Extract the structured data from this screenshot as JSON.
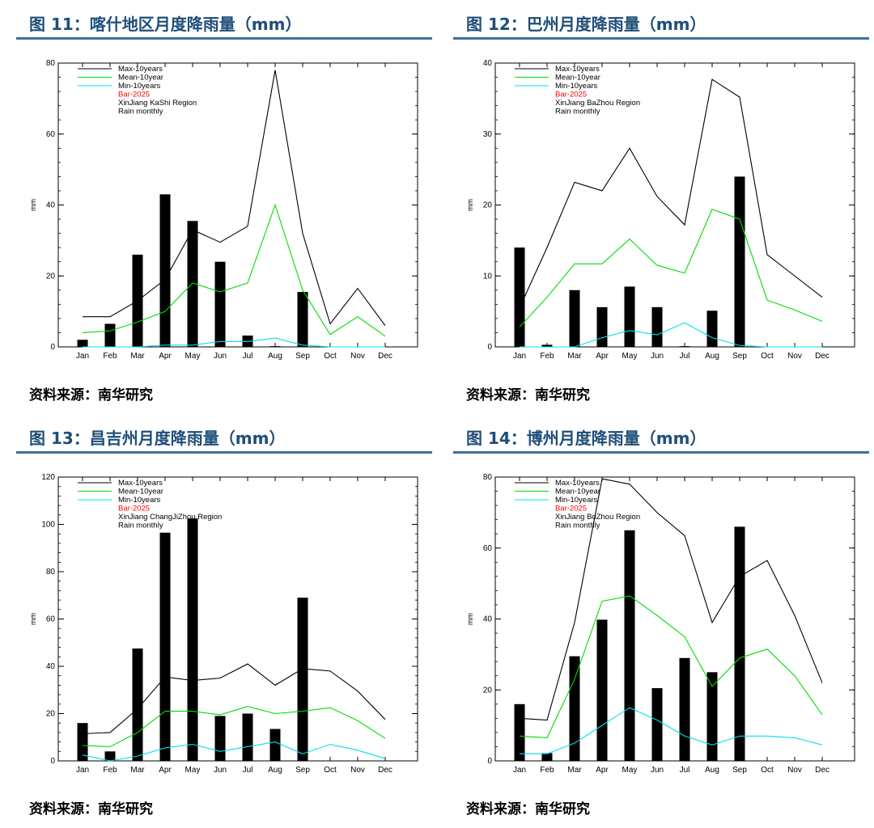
{
  "source_label": "资料来源：南华研究",
  "colors": {
    "title": "#1f4e79",
    "rule": "#3f6f9a",
    "max": "#000000",
    "mean": "#00dd00",
    "min": "#00e0f0",
    "bar": "#000000",
    "bar_legend": "#ff0000"
  },
  "chart_data": [
    {
      "type": "bar",
      "title": "图 11：喀什地区月度降雨量（mm）",
      "ylabel": "mm",
      "ylim": [
        0,
        80
      ],
      "yticks": [
        0,
        20,
        40,
        60,
        80
      ],
      "categories": [
        "Jan",
        "Feb",
        "Mar",
        "Apr",
        "May",
        "Jun",
        "Jul",
        "Aug",
        "Sep",
        "Oct",
        "Nov",
        "Dec"
      ],
      "legend": [
        "Max-10years",
        "Mean-10year",
        "Min-10years",
        "Bar-2025",
        "XinJiang KaShi Region",
        "Rain monthly"
      ],
      "series": [
        {
          "name": "Max-10years",
          "kind": "line",
          "values": [
            8.5,
            8.5,
            13,
            19,
            33,
            29.5,
            34,
            78,
            32,
            6.5,
            16.5,
            6
          ]
        },
        {
          "name": "Mean-10year",
          "kind": "line",
          "values": [
            4,
            4.5,
            7,
            10,
            18,
            15.5,
            18,
            40,
            16,
            3.5,
            8.5,
            3
          ]
        },
        {
          "name": "Min-10years",
          "kind": "line",
          "values": [
            0,
            0,
            0,
            0.5,
            0.5,
            1.5,
            1.5,
            2.5,
            0.5,
            0,
            0,
            0
          ]
        },
        {
          "name": "Bar-2025",
          "kind": "bar",
          "values": [
            2,
            6.5,
            26,
            43,
            35.5,
            24,
            3.2,
            0.2,
            15.5,
            0,
            0,
            0
          ]
        }
      ]
    },
    {
      "type": "bar",
      "title": "图 12：巴州月度降雨量（mm）",
      "ylabel": "mm",
      "ylim": [
        0,
        40
      ],
      "yticks": [
        0,
        10,
        20,
        30,
        40
      ],
      "categories": [
        "Jan",
        "Feb",
        "Mar",
        "Apr",
        "May",
        "Jun",
        "Jul",
        "Aug",
        "Sep",
        "Oct",
        "Nov",
        "Dec"
      ],
      "legend": [
        "Max-10years",
        "Mean-10year",
        "Min-10years",
        "Bar-2025",
        "XinJiang BaZhou Region",
        "Rain monthly"
      ],
      "series": [
        {
          "name": "Max-10years",
          "kind": "line",
          "values": [
            5.5,
            14,
            23.2,
            22,
            28,
            21.2,
            17.2,
            37.7,
            35.2,
            13,
            10,
            7
          ]
        },
        {
          "name": "Mean-10year",
          "kind": "line",
          "values": [
            2.8,
            7,
            11.7,
            11.7,
            15.2,
            11.5,
            10.4,
            19.4,
            18,
            6.6,
            5.2,
            3.6
          ]
        },
        {
          "name": "Min-10years",
          "kind": "line",
          "values": [
            0,
            0,
            0,
            1.3,
            2.3,
            1.7,
            3.4,
            1.3,
            0.2,
            0,
            0,
            0
          ]
        },
        {
          "name": "Bar-2025",
          "kind": "bar",
          "values": [
            14,
            0.3,
            8,
            5.6,
            8.5,
            5.6,
            0.1,
            5.1,
            24,
            0,
            0,
            0
          ]
        }
      ]
    },
    {
      "type": "bar",
      "title": "图 13：昌吉州月度降雨量（mm）",
      "ylabel": "mm",
      "ylim": [
        0,
        120
      ],
      "yticks": [
        0,
        20,
        40,
        60,
        80,
        100,
        120
      ],
      "categories": [
        "Jan",
        "Feb",
        "Mar",
        "Apr",
        "May",
        "Jun",
        "Jul",
        "Aug",
        "Sep",
        "Oct",
        "Nov",
        "Dec"
      ],
      "legend": [
        "Max-10years",
        "Mean-10year",
        "Min-10years",
        "Bar-2025",
        "XinJiang ChangJiZhou Region",
        "Rain monthly"
      ],
      "series": [
        {
          "name": "Max-10years",
          "kind": "line",
          "values": [
            11.5,
            12,
            22,
            35.5,
            34,
            35,
            41,
            32,
            39,
            38,
            29.5,
            17.5
          ]
        },
        {
          "name": "Mean-10year",
          "kind": "line",
          "values": [
            6.5,
            6,
            12,
            21,
            21,
            19.5,
            23,
            20,
            21,
            22.5,
            17,
            9.5
          ]
        },
        {
          "name": "Min-10years",
          "kind": "line",
          "values": [
            2.5,
            0,
            2,
            5.5,
            7,
            4,
            6,
            8,
            3,
            7,
            4.5,
            1
          ]
        },
        {
          "name": "Bar-2025",
          "kind": "bar",
          "values": [
            16,
            4,
            47.5,
            96.5,
            102.5,
            19,
            20,
            13.5,
            69,
            0,
            0,
            0
          ]
        }
      ]
    },
    {
      "type": "bar",
      "title": "图 14：博州月度降雨量（mm）",
      "ylabel": "mm",
      "ylim": [
        0,
        80
      ],
      "yticks": [
        0,
        20,
        40,
        60,
        80
      ],
      "categories": [
        "Jan",
        "Feb",
        "Mar",
        "Apr",
        "May",
        "Jun",
        "Jul",
        "Aug",
        "Sep",
        "Oct",
        "Nov",
        "Dec"
      ],
      "legend": [
        "Max-10years",
        "Mean-10year",
        "Min-10years",
        "Bar-2025",
        "XinJiang BoZhou Region",
        "Rain monthly"
      ],
      "series": [
        {
          "name": "Max-10years",
          "kind": "line",
          "values": [
            12,
            11.5,
            39,
            79.5,
            78,
            70,
            63.5,
            39,
            52,
            56.5,
            41,
            22
          ]
        },
        {
          "name": "Mean-10year",
          "kind": "line",
          "values": [
            7,
            6.5,
            23,
            45,
            46.5,
            41,
            35,
            21,
            29,
            31.5,
            24,
            13
          ]
        },
        {
          "name": "Min-10years",
          "kind": "line",
          "values": [
            2,
            2,
            5,
            10,
            15,
            11.5,
            7,
            4.5,
            7,
            7,
            6.5,
            4.5
          ]
        },
        {
          "name": "Bar-2025",
          "kind": "bar",
          "values": [
            16,
            2.2,
            29.5,
            39.8,
            65,
            20.5,
            29,
            25,
            66,
            0,
            0,
            0
          ]
        }
      ]
    }
  ]
}
